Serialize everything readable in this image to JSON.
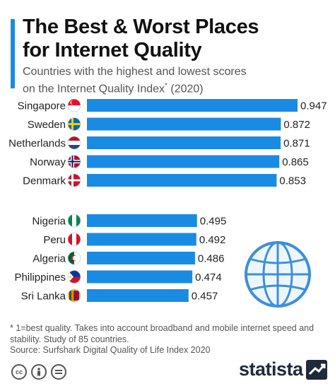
{
  "header": {
    "title_line1": "The Best & Worst Places",
    "title_line2": "for Internet Quality",
    "subtitle_line1": "Countries with the highest and lowest scores",
    "subtitle_line2": "on the Internet Quality Index",
    "subtitle_sup": "*",
    "subtitle_year": " (2020)"
  },
  "footer": {
    "footnote": "* 1=best quality. Takes into account broadband and mobile internet speed and stability. Study of 85 countries.",
    "source": "Source: Surfshark Digital Quality of Life Index 2020",
    "brand": "statista",
    "cc_icons": [
      "cc-icon",
      "by-icon",
      "equals-icon"
    ]
  },
  "colors": {
    "bar": "#1a8be3",
    "accent": "#1a8be3",
    "text": "#222222",
    "globe": "#3d8fdb"
  },
  "chart_data": {
    "type": "bar",
    "orientation": "horizontal",
    "groups": [
      {
        "name": "highest",
        "categories": [
          "Singapore",
          "Sweden",
          "Netherlands",
          "Norway",
          "Denmark"
        ],
        "flags": [
          "singapore-flag",
          "sweden-flag",
          "netherlands-flag",
          "norway-flag",
          "denmark-flag"
        ],
        "values": [
          0.947,
          0.872,
          0.871,
          0.865,
          0.853
        ]
      },
      {
        "name": "lowest",
        "categories": [
          "Nigeria",
          "Peru",
          "Algeria",
          "Philippines",
          "Sri Lanka"
        ],
        "flags": [
          "nigeria-flag",
          "peru-flag",
          "algeria-flag",
          "philippines-flag",
          "sri-lanka-flag"
        ],
        "values": [
          0.495,
          0.492,
          0.486,
          0.474,
          0.457
        ]
      }
    ],
    "xlim": [
      0,
      0.947
    ],
    "value_format": "0.000",
    "grid": false,
    "legend": "none"
  }
}
